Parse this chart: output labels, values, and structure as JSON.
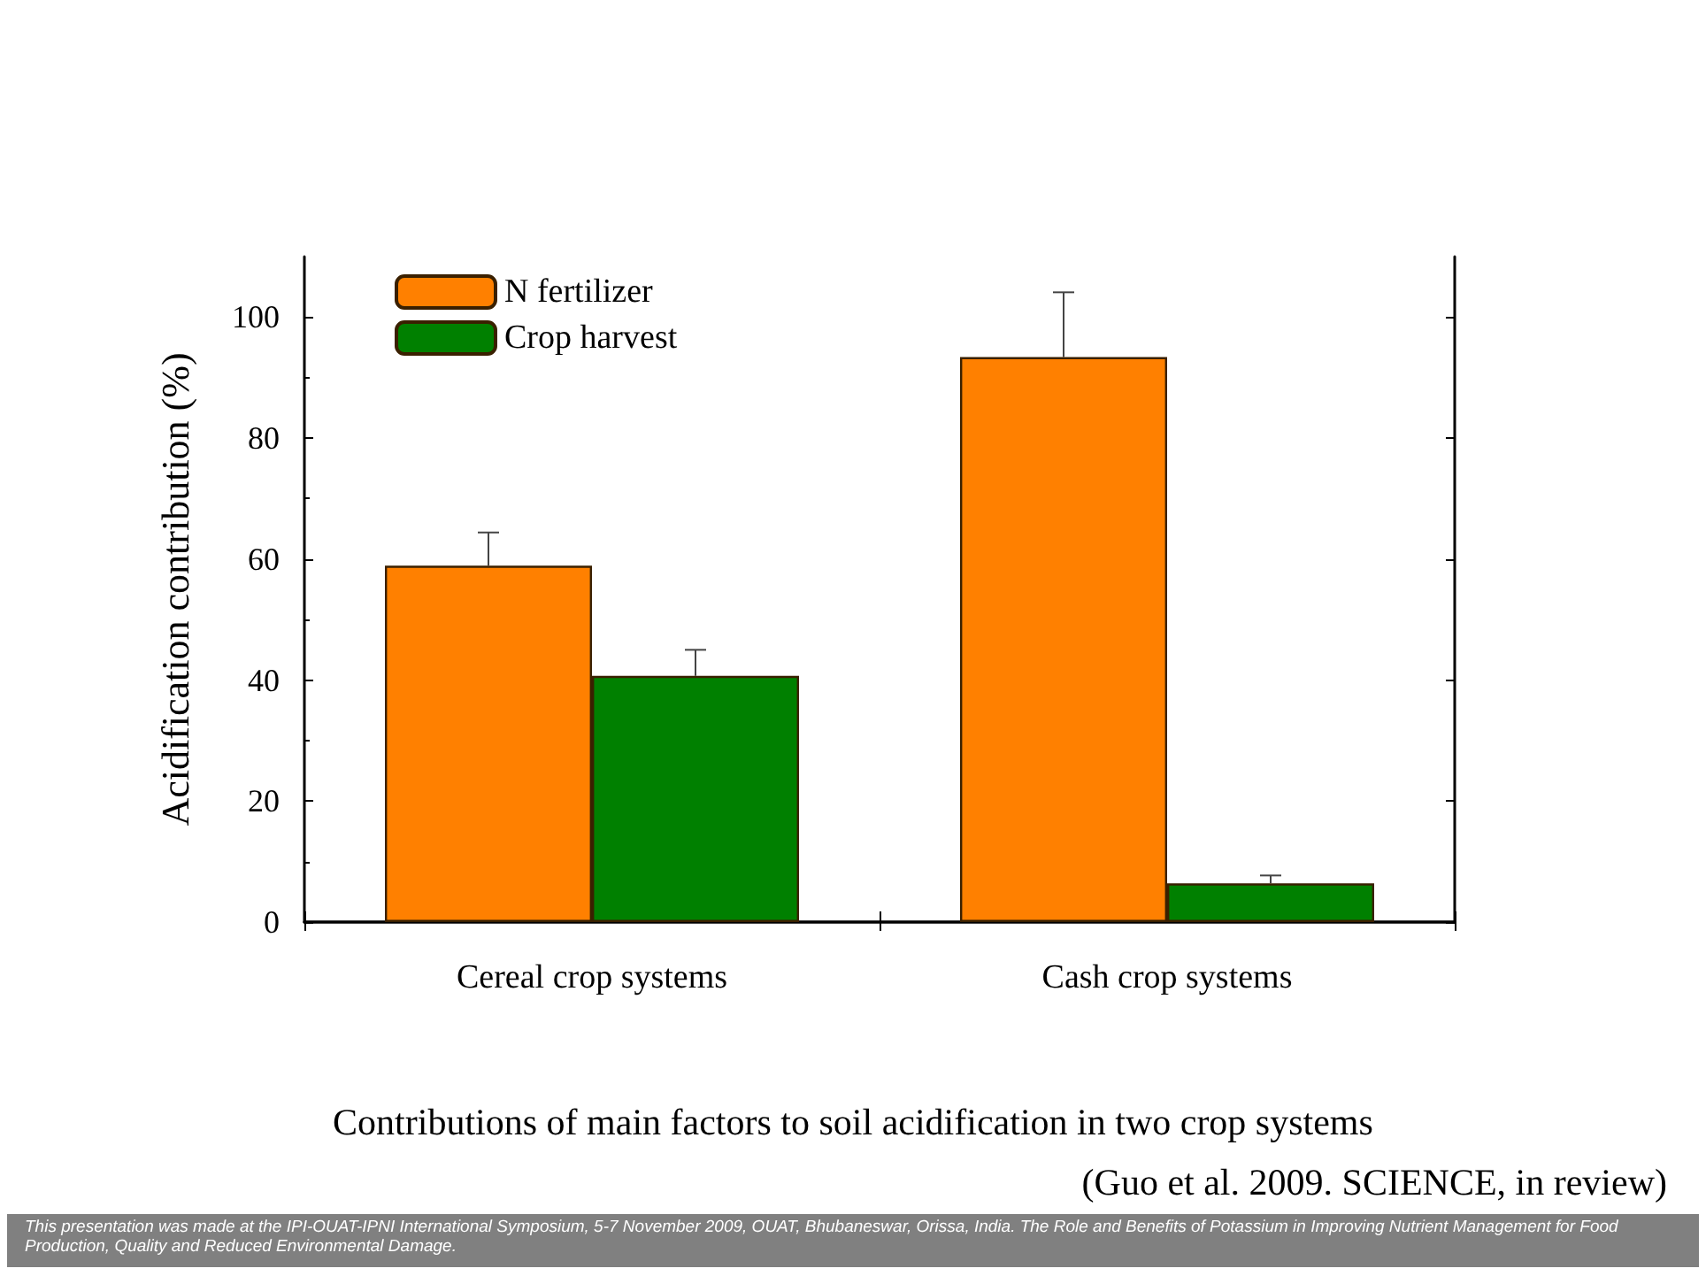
{
  "chart_data": {
    "type": "bar",
    "title": "Contributions of main factors to soil acidification in two crop systems",
    "ylabel": "Acidification contribution (%)",
    "categories": [
      "Cereal crop systems",
      "Cash crop systems"
    ],
    "series": [
      {
        "name": "N fertilizer",
        "color": "#ff8000",
        "values": [
          58.9,
          93.4
        ],
        "errors": [
          [
            58.9,
            64.4
          ],
          [
            93.4,
            104.1
          ]
        ]
      },
      {
        "name": "Crop harvest",
        "color": "#008000",
        "values": [
          40.7,
          6.4
        ],
        "errors": [
          [
            40.7,
            45.0
          ],
          [
            6.4,
            7.7
          ]
        ]
      }
    ],
    "ylim": [
      0,
      110
    ],
    "yticks": [
      0,
      20,
      40,
      60,
      80,
      100
    ],
    "legend": "top left",
    "grid": false,
    "annotations": [
      "(Guo et al. 2009. SCIENCE, in review)",
      "This presentation was made at the IPI-OUAT-IPNI International Symposium, 5-7 November 2009, OUAT, Bhubaneswar, Orissa, India. The Role and Benefits of Potassium in Improving Nutrient Management for Food Production, Quality and Reduced Environmental Damage."
    ]
  }
}
